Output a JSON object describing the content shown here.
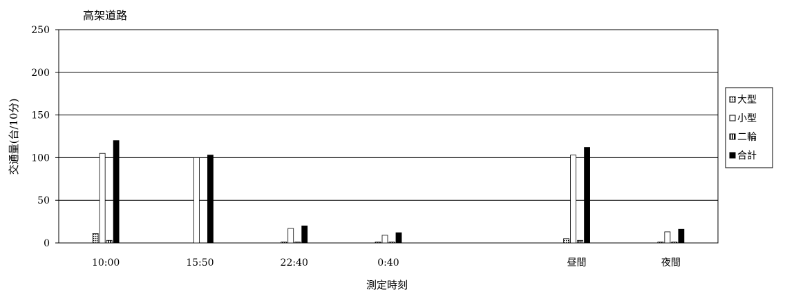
{
  "chart_data": {
    "type": "bar",
    "title": "高架道路",
    "xlabel": "測定時刻",
    "ylabel": "交通量(台/10分)",
    "ylim": [
      0,
      250
    ],
    "yticks": [
      0,
      50,
      100,
      150,
      200,
      250
    ],
    "grid": true,
    "legend_position": "right",
    "categories": [
      "10:00",
      "15:50",
      "22:40",
      "0:40",
      "",
      "昼間",
      "夜間"
    ],
    "series": [
      {
        "name": "大型",
        "pattern": "dotted",
        "values": [
          11,
          0,
          1,
          1,
          null,
          5,
          1
        ]
      },
      {
        "name": "小型",
        "pattern": "white",
        "values": [
          105,
          100,
          17,
          9,
          null,
          103,
          13
        ]
      },
      {
        "name": "二輪",
        "pattern": "vertical-stripes",
        "values": [
          3,
          0,
          1,
          1,
          null,
          3,
          1
        ]
      },
      {
        "name": "合計",
        "pattern": "black",
        "values": [
          120,
          103,
          20,
          12,
          null,
          112,
          16
        ]
      }
    ]
  }
}
